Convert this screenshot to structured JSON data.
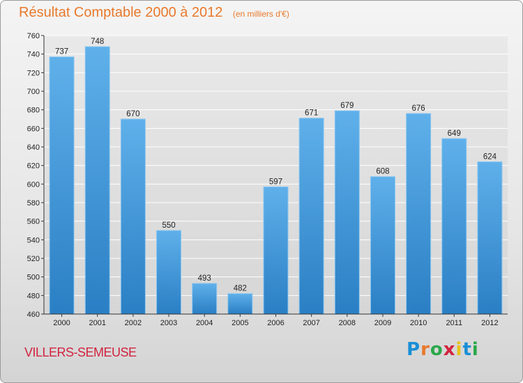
{
  "title": "Résultat Comptable 2000 à 2012",
  "subtitle": "(en milliers d'€)",
  "location": "VILLERS-SEMEUSE",
  "logo": {
    "text": "Proxiti",
    "colors": [
      "#1a8fd6",
      "#e8792c",
      "#2aa84a",
      "#d2233f",
      "#e8c21a",
      "#1a8fd6",
      "#2aa84a"
    ]
  },
  "colors": {
    "bar": "#4da3e0",
    "bar_dark": "#2a7fc4",
    "title": "#e8792c",
    "location": "#d2233f"
  },
  "chart_data": {
    "type": "bar",
    "categories": [
      "2000",
      "2001",
      "2002",
      "2003",
      "2004",
      "2005",
      "2006",
      "2007",
      "2008",
      "2009",
      "2010",
      "2011",
      "2012"
    ],
    "values": [
      737,
      748,
      670,
      550,
      493,
      482,
      597,
      671,
      679,
      608,
      676,
      649,
      624
    ],
    "ylim": [
      460,
      760
    ],
    "yticks": [
      460,
      480,
      500,
      520,
      540,
      560,
      580,
      600,
      620,
      640,
      660,
      680,
      700,
      720,
      740,
      760
    ],
    "grid": true,
    "xlabel": "",
    "ylabel": ""
  }
}
